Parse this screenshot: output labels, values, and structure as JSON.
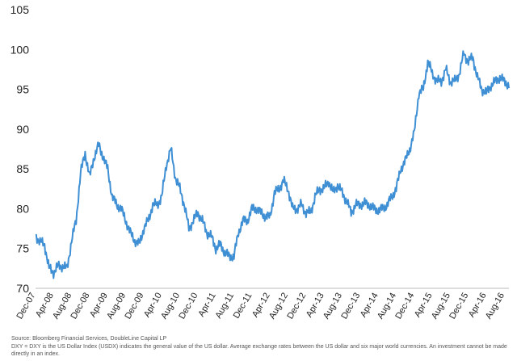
{
  "chart_data": {
    "type": "line",
    "title": "",
    "xlabel": "",
    "ylabel": "",
    "ylim": [
      70,
      105
    ],
    "yticks": [
      70,
      75,
      80,
      85,
      90,
      95,
      100,
      105
    ],
    "xticks": [
      "Dec-07",
      "Apr-08",
      "Aug-08",
      "Dec-08",
      "Apr-09",
      "Aug-09",
      "Dec-09",
      "Apr-10",
      "Aug-10",
      "Dec-10",
      "Apr-11",
      "Aug-11",
      "Dec-11",
      "Apr-12",
      "Aug-12",
      "Dec-12",
      "Apr-13",
      "Aug-13",
      "Dec-13",
      "Apr-14",
      "Aug-14",
      "Dec-14",
      "Apr-15",
      "Aug-15",
      "Dec-15",
      "Apr-16",
      "Aug-16"
    ],
    "grid": false,
    "line_color": "#3f8fd4",
    "series": [
      {
        "x": [
          "2007-12",
          "2008-01",
          "2008-02",
          "2008-03",
          "2008-04",
          "2008-05",
          "2008-06",
          "2008-07",
          "2008-08",
          "2008-09",
          "2008-10",
          "2008-11",
          "2008-12",
          "2009-01",
          "2009-02",
          "2009-03",
          "2009-04",
          "2009-05",
          "2009-06",
          "2009-07",
          "2009-08",
          "2009-09",
          "2009-10",
          "2009-11",
          "2009-12",
          "2010-01",
          "2010-02",
          "2010-03",
          "2010-04",
          "2010-05",
          "2010-06",
          "2010-07",
          "2010-08",
          "2010-09",
          "2010-10",
          "2010-11",
          "2010-12",
          "2011-01",
          "2011-02",
          "2011-03",
          "2011-04",
          "2011-05",
          "2011-06",
          "2011-07",
          "2011-08",
          "2011-09",
          "2011-10",
          "2011-11",
          "2011-12",
          "2012-01",
          "2012-02",
          "2012-03",
          "2012-04",
          "2012-05",
          "2012-06",
          "2012-07",
          "2012-08",
          "2012-09",
          "2012-10",
          "2012-11",
          "2012-12",
          "2013-01",
          "2013-02",
          "2013-03",
          "2013-04",
          "2013-05",
          "2013-06",
          "2013-07",
          "2013-08",
          "2013-09",
          "2013-10",
          "2013-11",
          "2013-12",
          "2014-01",
          "2014-02",
          "2014-03",
          "2014-04",
          "2014-05",
          "2014-06",
          "2014-07",
          "2014-08",
          "2014-09",
          "2014-10",
          "2014-11",
          "2014-12",
          "2015-01",
          "2015-02",
          "2015-03",
          "2015-04",
          "2015-05",
          "2015-06",
          "2015-07",
          "2015-08",
          "2015-09",
          "2015-10",
          "2015-11",
          "2015-12",
          "2016-01",
          "2016-02",
          "2016-03",
          "2016-04",
          "2016-05",
          "2016-06",
          "2016-07",
          "2016-08",
          "2016-09"
        ],
        "values": [
          76.7,
          75.8,
          75.5,
          72.5,
          72.0,
          72.8,
          72.8,
          72.5,
          76.0,
          78.5,
          84.5,
          87.0,
          84.0,
          86.5,
          88.0,
          86.5,
          85.0,
          81.5,
          80.5,
          80.0,
          78.5,
          77.0,
          76.0,
          75.5,
          77.5,
          78.5,
          80.5,
          80.5,
          81.5,
          85.5,
          87.5,
          84.0,
          82.5,
          80.5,
          77.5,
          78.5,
          79.5,
          78.5,
          77.0,
          76.5,
          75.0,
          75.5,
          74.5,
          74.0,
          74.0,
          77.0,
          78.5,
          78.5,
          80.0,
          80.0,
          79.5,
          79.0,
          79.0,
          82.0,
          82.5,
          83.5,
          82.5,
          80.0,
          80.0,
          80.5,
          79.5,
          79.5,
          81.5,
          82.5,
          82.5,
          83.5,
          82.0,
          83.0,
          82.0,
          81.0,
          79.5,
          80.5,
          80.5,
          80.7,
          80.5,
          80.0,
          79.8,
          80.0,
          80.5,
          81.5,
          82.5,
          85.0,
          86.0,
          87.5,
          89.5,
          94.5,
          95.0,
          98.5,
          97.0,
          96.0,
          96.0,
          97.5,
          96.0,
          96.0,
          97.0,
          99.5,
          98.5,
          99.0,
          96.5,
          95.0,
          94.5,
          95.5,
          96.0,
          96.5,
          96.0,
          95.5
        ]
      }
    ]
  },
  "footnote": {
    "source": "Source: Bloomberg Financial Services, DoubleLine Capital LP",
    "disclaimer_line1": "DXY = DXY is the US Dollar Index (USDX) indicates the general value of the US dollar. Average exchange rates between the US dollar and six major world currencies. An investment cannot be made",
    "disclaimer_line2": "directly in an index."
  }
}
